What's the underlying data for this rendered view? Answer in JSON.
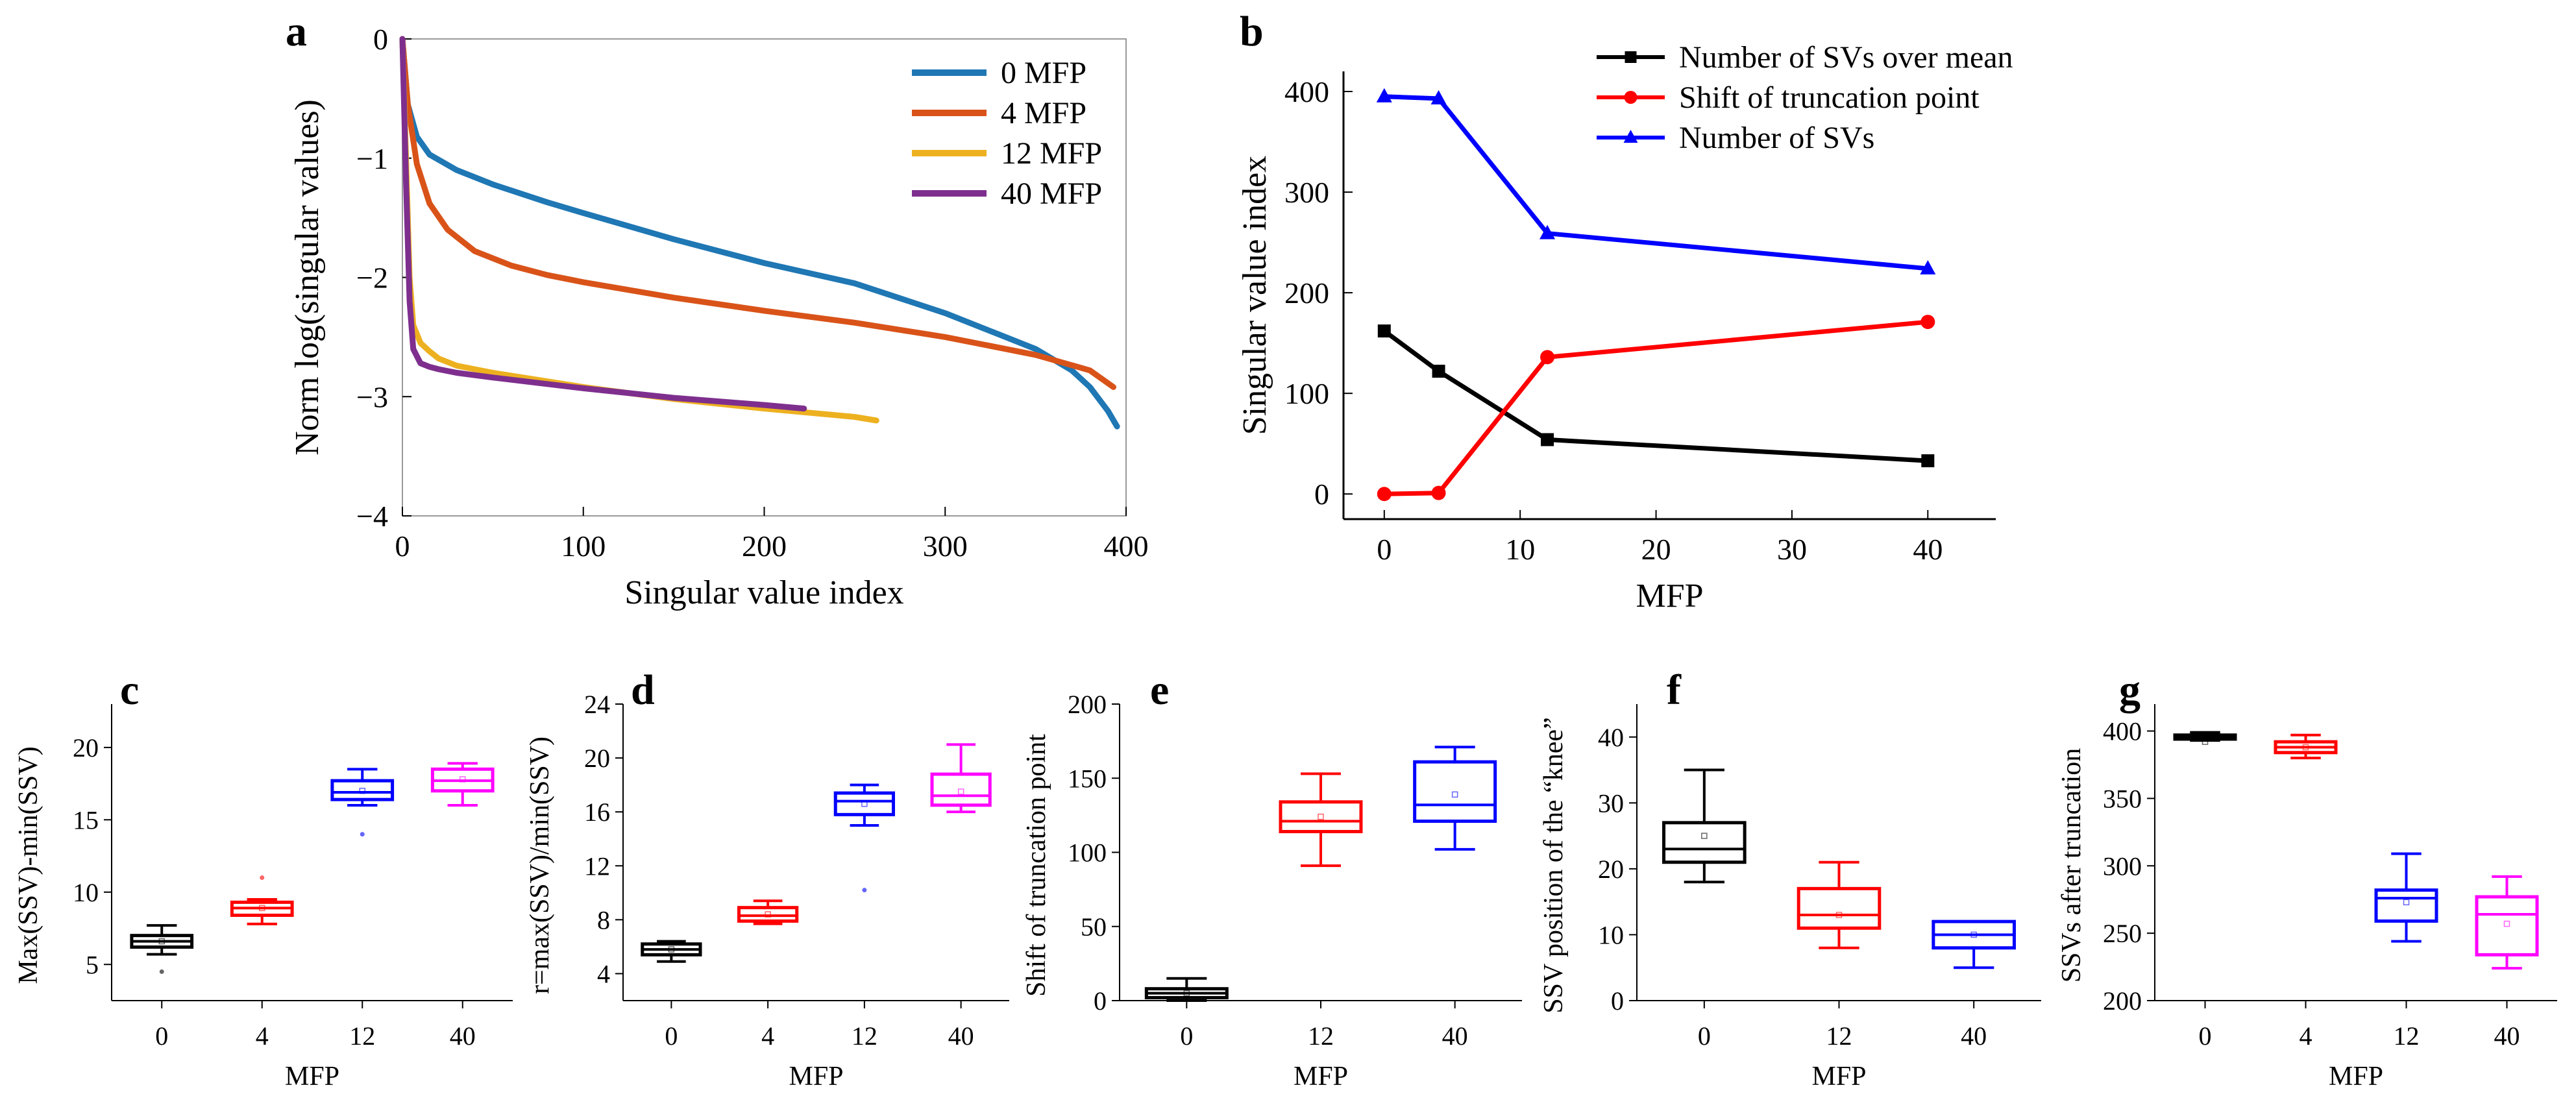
{
  "chart_data": [
    {
      "panel": "a",
      "type": "line",
      "xlabel": "Singular value index",
      "ylabel": "Norm log(singular values)",
      "xlim": [
        0,
        400
      ],
      "ylim": [
        -4,
        0
      ],
      "xticks": [
        "0",
        "100",
        "200",
        "300",
        "400"
      ],
      "yticks": [
        "0",
        "−1",
        "−2",
        "−3",
        "−4"
      ],
      "legend_position": "top-right",
      "series": [
        {
          "name": "0 MFP",
          "color": "#1f77b4",
          "x": [
            0,
            3,
            8,
            15,
            30,
            50,
            80,
            100,
            150,
            200,
            250,
            300,
            330,
            350,
            370,
            380,
            390,
            395
          ],
          "y": [
            0,
            -0.55,
            -0.82,
            -0.97,
            -1.1,
            -1.22,
            -1.37,
            -1.46,
            -1.68,
            -1.88,
            -2.05,
            -2.3,
            -2.48,
            -2.6,
            -2.78,
            -2.92,
            -3.12,
            -3.25
          ]
        },
        {
          "name": "4 MFP",
          "color": "#d95319",
          "x": [
            0,
            3,
            8,
            15,
            25,
            40,
            60,
            80,
            100,
            150,
            200,
            250,
            300,
            350,
            380,
            393
          ],
          "y": [
            0,
            -0.55,
            -1.05,
            -1.38,
            -1.6,
            -1.78,
            -1.9,
            -1.98,
            -2.04,
            -2.17,
            -2.28,
            -2.38,
            -2.5,
            -2.65,
            -2.78,
            -2.92
          ]
        },
        {
          "name": "12 MFP",
          "color": "#edb120",
          "x": [
            0,
            2,
            4,
            6,
            10,
            15,
            20,
            30,
            50,
            100,
            150,
            200,
            250,
            262
          ],
          "y": [
            0,
            -1.0,
            -2.0,
            -2.4,
            -2.55,
            -2.62,
            -2.68,
            -2.74,
            -2.8,
            -2.92,
            -3.02,
            -3.1,
            -3.17,
            -3.2
          ]
        },
        {
          "name": "40 MFP",
          "color": "#7e2f8e",
          "x": [
            0,
            2,
            4,
            6,
            10,
            15,
            20,
            30,
            50,
            100,
            150,
            200,
            222
          ],
          "y": [
            0,
            -1.2,
            -2.2,
            -2.6,
            -2.72,
            -2.75,
            -2.77,
            -2.8,
            -2.84,
            -2.93,
            -3.01,
            -3.07,
            -3.1
          ]
        }
      ]
    },
    {
      "panel": "b",
      "type": "line",
      "xlabel": "MFP",
      "ylabel": "Singular value index",
      "xlim": [
        -3,
        45
      ],
      "ylim": [
        -25,
        420
      ],
      "xticks": [
        "0",
        "10",
        "20",
        "30",
        "40"
      ],
      "yticks": [
        "0",
        "100",
        "200",
        "300",
        "400"
      ],
      "legend_position": "top",
      "series": [
        {
          "name": "Number of SVs over mean",
          "color": "#000000",
          "marker": "square",
          "x": [
            0,
            4,
            12,
            40
          ],
          "y": [
            162,
            122,
            54,
            33
          ]
        },
        {
          "name": "Shift of truncation point",
          "color": "#ff0000",
          "marker": "circle",
          "x": [
            0,
            4,
            12,
            40
          ],
          "y": [
            0,
            1,
            136,
            171
          ]
        },
        {
          "name": "Number of SVs",
          "color": "#0000ff",
          "marker": "triangle",
          "x": [
            0,
            4,
            12,
            40
          ],
          "y": [
            395,
            393,
            259,
            224
          ]
        }
      ]
    },
    {
      "panel": "c",
      "type": "box",
      "xlabel": "MFP",
      "ylabel": "Max(SSV)-min(SSV)",
      "ylim": [
        2.5,
        23
      ],
      "yticks": [
        "5",
        "10",
        "15",
        "20"
      ],
      "categories": [
        "0",
        "4",
        "12",
        "40"
      ],
      "colors": [
        "#000000",
        "#ff0000",
        "#0000ff",
        "#ff00ff"
      ],
      "boxes": [
        {
          "min": 5.7,
          "q1": 6.2,
          "median": 6.6,
          "q3": 7.0,
          "max": 7.7,
          "mean": 6.6,
          "outliers": [
            4.5
          ]
        },
        {
          "min": 7.8,
          "q1": 8.4,
          "median": 8.9,
          "q3": 9.3,
          "max": 9.5,
          "mean": 8.9,
          "outliers": [
            11.0
          ]
        },
        {
          "min": 16.0,
          "q1": 16.4,
          "median": 16.9,
          "q3": 17.7,
          "max": 18.5,
          "mean": 17.0,
          "outliers": [
            14.0
          ]
        },
        {
          "min": 16.0,
          "q1": 17.0,
          "median": 17.7,
          "q3": 18.5,
          "max": 18.9,
          "mean": 17.8,
          "outliers": []
        }
      ]
    },
    {
      "panel": "d",
      "type": "box",
      "xlabel": "MFP",
      "ylabel": "r=max(SSV)/min(SSV)",
      "ylim": [
        2,
        24
      ],
      "yticks": [
        "4",
        "8",
        "12",
        "16",
        "20",
        "24"
      ],
      "categories": [
        "0",
        "4",
        "12",
        "40"
      ],
      "colors": [
        "#000000",
        "#ff0000",
        "#0000ff",
        "#ff00ff"
      ],
      "boxes": [
        {
          "min": 4.9,
          "q1": 5.4,
          "median": 5.8,
          "q3": 6.2,
          "max": 6.4,
          "mean": 5.8,
          "outliers": []
        },
        {
          "min": 7.7,
          "q1": 7.9,
          "median": 8.3,
          "q3": 8.9,
          "max": 9.4,
          "mean": 8.4,
          "outliers": []
        },
        {
          "min": 15.0,
          "q1": 15.8,
          "median": 16.8,
          "q3": 17.4,
          "max": 18.0,
          "mean": 16.6,
          "outliers": [
            10.2
          ]
        },
        {
          "min": 16.0,
          "q1": 16.5,
          "median": 17.2,
          "q3": 18.8,
          "max": 21.0,
          "mean": 17.5,
          "outliers": []
        }
      ]
    },
    {
      "panel": "e",
      "type": "box",
      "xlabel": "MFP",
      "ylabel": "Shift of truncation point",
      "ylim": [
        0,
        200
      ],
      "yticks": [
        "0",
        "50",
        "100",
        "150",
        "200"
      ],
      "categories": [
        "0",
        "12",
        "40"
      ],
      "colors": [
        "#000000",
        "#ff0000",
        "#0000ff"
      ],
      "boxes": [
        {
          "min": 0,
          "q1": 2,
          "median": 5,
          "q3": 8,
          "max": 15,
          "mean": 5,
          "outliers": []
        },
        {
          "min": 91,
          "q1": 114,
          "median": 121,
          "q3": 134,
          "max": 153,
          "mean": 124,
          "outliers": []
        },
        {
          "min": 102,
          "q1": 121,
          "median": 132,
          "q3": 161,
          "max": 171,
          "mean": 139,
          "outliers": []
        }
      ]
    },
    {
      "panel": "f",
      "type": "box",
      "xlabel": "MFP",
      "ylabel": "SSV position of the “knee”",
      "ylim": [
        0,
        45
      ],
      "yticks": [
        "0",
        "10",
        "20",
        "30",
        "40"
      ],
      "categories": [
        "0",
        "12",
        "40"
      ],
      "colors": [
        "#000000",
        "#ff0000",
        "#0000ff"
      ],
      "boxes": [
        {
          "min": 18,
          "q1": 21,
          "median": 23,
          "q3": 27,
          "max": 35,
          "mean": 25,
          "outliers": []
        },
        {
          "min": 8,
          "q1": 11,
          "median": 13,
          "q3": 17,
          "max": 21,
          "mean": 13,
          "outliers": []
        },
        {
          "min": 5,
          "q1": 8,
          "median": 10,
          "q3": 12,
          "max": 12,
          "mean": 10,
          "outliers": []
        }
      ]
    },
    {
      "panel": "g",
      "type": "box",
      "xlabel": "MFP",
      "ylabel": "SSVs after truncation",
      "ylim": [
        200,
        420
      ],
      "yticks": [
        "200",
        "250",
        "300",
        "350",
        "400"
      ],
      "categories": [
        "0",
        "4",
        "12",
        "40"
      ],
      "colors": [
        "#000000",
        "#ff0000",
        "#0000ff",
        "#ff00ff"
      ],
      "boxes": [
        {
          "min": 393,
          "q1": 394,
          "median": 396,
          "q3": 397,
          "max": 399,
          "mean": 392,
          "outliers": []
        },
        {
          "min": 380,
          "q1": 384,
          "median": 388,
          "q3": 392,
          "max": 397,
          "mean": 388,
          "outliers": []
        },
        {
          "min": 244,
          "q1": 259,
          "median": 276,
          "q3": 282,
          "max": 309,
          "mean": 273,
          "outliers": []
        },
        {
          "min": 224,
          "q1": 234,
          "median": 264,
          "q3": 277,
          "max": 292,
          "mean": 257,
          "outliers": []
        }
      ]
    }
  ]
}
